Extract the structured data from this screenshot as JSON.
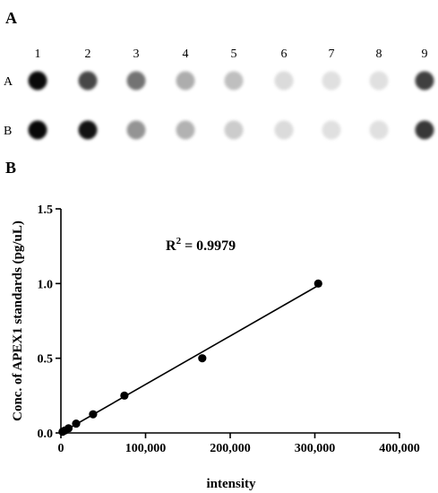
{
  "panel_a": {
    "letter": "A",
    "lane_labels": [
      "1",
      "2",
      "3",
      "4",
      "5",
      "6",
      "7",
      "8",
      "9"
    ],
    "rows": [
      {
        "label": "A",
        "intensities": [
          0.96,
          0.72,
          0.55,
          0.32,
          0.25,
          0.14,
          0.12,
          0.12,
          0.75
        ]
      },
      {
        "label": "B",
        "intensities": [
          0.97,
          0.93,
          0.42,
          0.3,
          0.2,
          0.14,
          0.12,
          0.12,
          0.78
        ]
      }
    ],
    "spot_color": "#000000"
  },
  "panel_b": {
    "letter": "B"
  },
  "chart_data": {
    "type": "scatter",
    "xlabel": "intensity",
    "ylabel": "Conc. of APEX1 standards (pg/uL)",
    "xlim": [
      0,
      400000
    ],
    "ylim": [
      0,
      1.5
    ],
    "x_ticks": [
      0,
      100000,
      200000,
      300000,
      400000
    ],
    "x_tick_labels": [
      "0",
      "100,000",
      "200,000",
      "300,000",
      "400,000"
    ],
    "y_ticks": [
      0,
      0.5,
      1.0,
      1.5
    ],
    "y_tick_labels": [
      "0.0",
      "0.5",
      "1.0",
      "1.5"
    ],
    "grid": false,
    "series": [
      {
        "x": [
          2000,
          4500,
          9000,
          18000,
          38000,
          75000,
          167000,
          304000
        ],
        "y": [
          0.008,
          0.016,
          0.031,
          0.0625,
          0.125,
          0.25,
          0.5,
          1.0
        ]
      }
    ],
    "fit_line": {
      "x": [
        0,
        305000
      ],
      "y": [
        0.0,
        0.99
      ]
    },
    "annotation": {
      "r_label": "R",
      "r_exponent": "2",
      "r_value": " = 0.9979"
    },
    "marker_color": "#000000",
    "line_color": "#000000"
  }
}
